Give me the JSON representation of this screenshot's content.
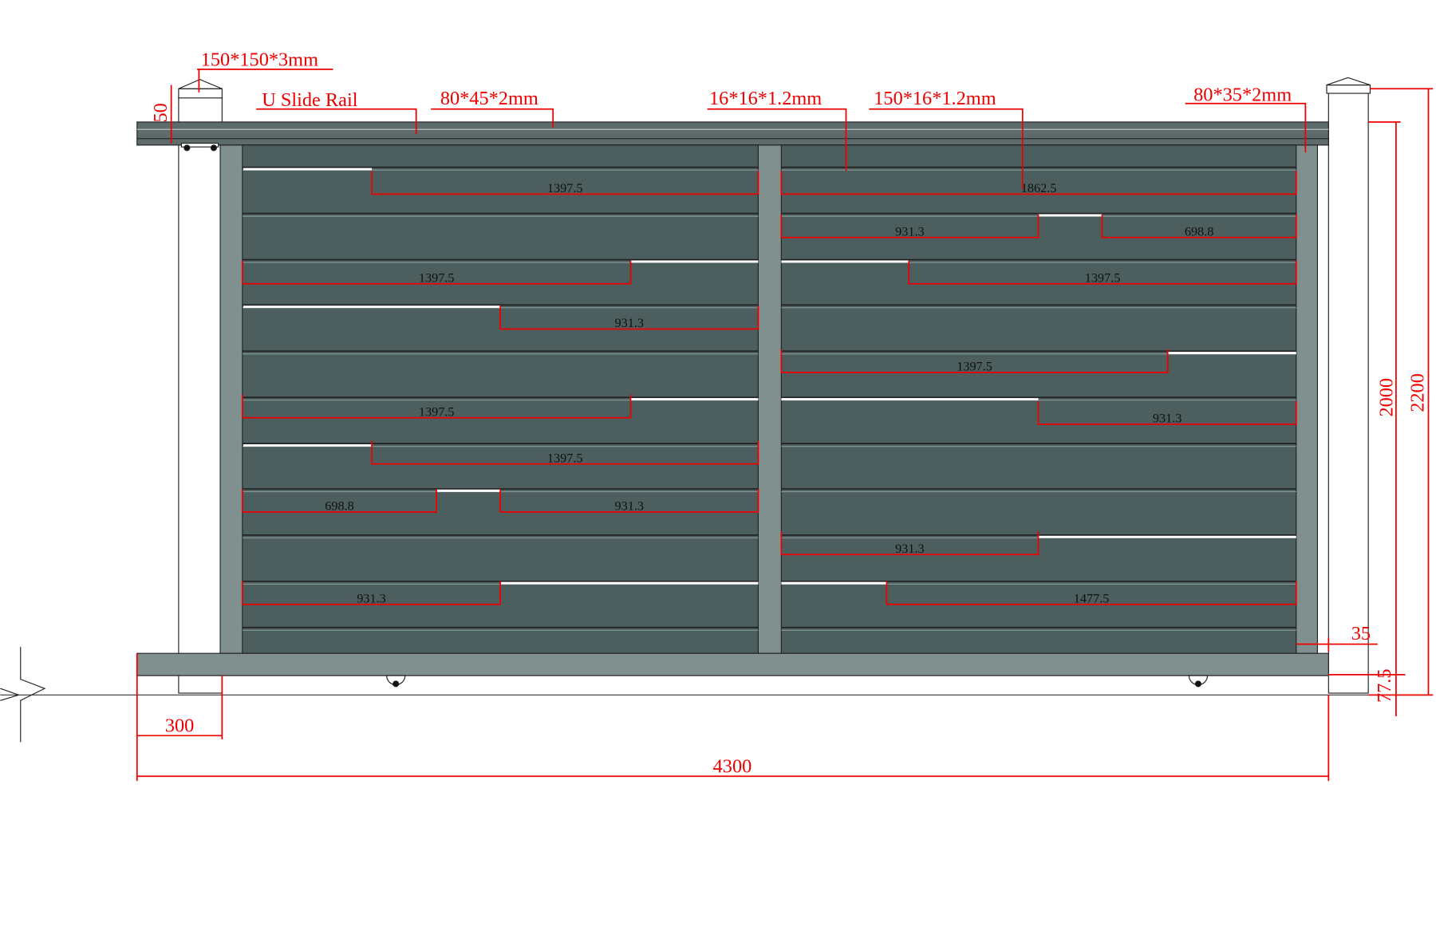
{
  "specs": {
    "post": "150*150*3mm",
    "rail": "U Slide Rail",
    "rail_size": "80*45*2mm",
    "tube": "16*16*1.2mm",
    "slat": "150*16*1.2mm",
    "frame": "80*35*2mm"
  },
  "dimensions": {
    "rail_height": "50",
    "panel_height": "2000",
    "total_height": "2200",
    "frame_width": "35",
    "ground_gap": "77.5",
    "post_offset": "300",
    "total_width": "4300"
  },
  "slat_lengths": [
    "1397.5",
    "1862.5",
    "931.3",
    "698.8",
    "1397.5",
    "1397.5",
    "931.3",
    "1397.5",
    "1397.5",
    "931.3",
    "1397.5",
    "698.8",
    "931.3",
    "931.3",
    "931.3",
    "1477.5"
  ]
}
